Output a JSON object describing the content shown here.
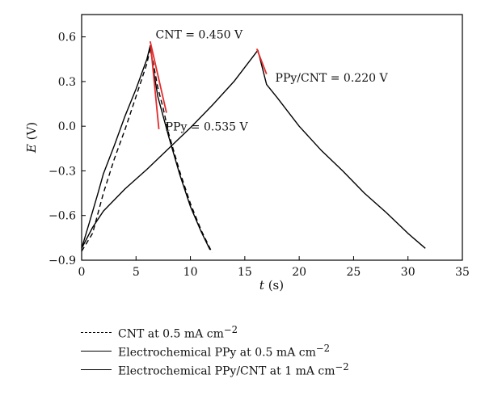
{
  "chart_data": {
    "type": "line",
    "xlabel": "t (s)",
    "xlabel_italic": "t",
    "xlabel_unit": " (s)",
    "ylabel": "E (V)",
    "ylabel_italic": "E",
    "ylabel_unit": " (V)",
    "xlim": [
      0,
      35
    ],
    "ylim": [
      -0.9,
      0.75
    ],
    "xticks": [
      "0",
      "5",
      "10",
      "15",
      "20",
      "25",
      "30",
      "35"
    ],
    "yticks": [
      "−0.9",
      "−0.6",
      "−0.3",
      "0.0",
      "0.3",
      "0.6"
    ],
    "series": [
      {
        "name": "CNT at 0.5 mA cm−2",
        "style": "dashed",
        "color": "#000000",
        "x": [
          0,
          1,
          2,
          3,
          4,
          5,
          6,
          6.3,
          6.6,
          7,
          7.5,
          8,
          9,
          10,
          11,
          12
        ],
        "y": [
          -0.84,
          -0.72,
          -0.45,
          -0.22,
          -0.02,
          0.2,
          0.42,
          0.52,
          0.42,
          0.26,
          0.12,
          -0.05,
          -0.3,
          -0.52,
          -0.7,
          -0.85
        ]
      },
      {
        "name": "Electrochemical PPy at 0.5 mA cm−2",
        "style": "solid",
        "color": "#000000",
        "x": [
          0,
          0.7,
          1.5,
          2,
          3,
          4,
          5,
          6,
          6.3,
          6.6,
          7,
          8,
          9,
          10,
          11,
          11.8
        ],
        "y": [
          -0.82,
          -0.65,
          -0.45,
          -0.32,
          -0.13,
          0.07,
          0.25,
          0.45,
          0.54,
          0.38,
          0.2,
          -0.07,
          -0.32,
          -0.54,
          -0.71,
          -0.83
        ]
      },
      {
        "name": "Electrochemical PPy/CNT at 1 mA cm−2",
        "style": "solid",
        "color": "#000000",
        "x": [
          0,
          1,
          2,
          4,
          6,
          8,
          10,
          12,
          14,
          16.2,
          17,
          18,
          20,
          22,
          24,
          26,
          28,
          30,
          31.6
        ],
        "y": [
          -0.82,
          -0.68,
          -0.57,
          -0.42,
          -0.29,
          -0.15,
          -0.01,
          0.14,
          0.3,
          0.51,
          0.28,
          0.19,
          0.0,
          -0.16,
          -0.3,
          -0.45,
          -0.58,
          -0.72,
          -0.82
        ]
      }
    ],
    "ir_drop_markers": [
      {
        "color": "#e52b2b",
        "x": [
          6.3,
          7.8
        ],
        "y": [
          0.57,
          0.09
        ]
      },
      {
        "color": "#e52b2b",
        "x": [
          6.35,
          7.1
        ],
        "y": [
          0.54,
          -0.02
        ]
      },
      {
        "color": "#e52b2b",
        "x": [
          16.1,
          17.0
        ],
        "y": [
          0.52,
          0.35
        ]
      }
    ],
    "annotations": [
      {
        "id": "cnt",
        "text": "CNT = 0.450 V",
        "x": 6.8,
        "y": 0.59
      },
      {
        "id": "ppy",
        "text": "PPy = 0.535 V",
        "x": 7.7,
        "y": -0.03
      },
      {
        "id": "ppycnt",
        "text": "PPy/CNT = 0.220 V",
        "x": 17.8,
        "y": 0.3
      }
    ],
    "legend_position": "below"
  },
  "legend": [
    {
      "style": "dashed",
      "text": "CNT at 0.5 mA cm",
      "exp": "−2"
    },
    {
      "style": "solid",
      "text": "Electrochemical PPy at 0.5 mA cm",
      "exp": "−2"
    },
    {
      "style": "solid",
      "text": "Electrochemical PPy/CNT at 1 mA cm",
      "exp": "−2"
    }
  ]
}
